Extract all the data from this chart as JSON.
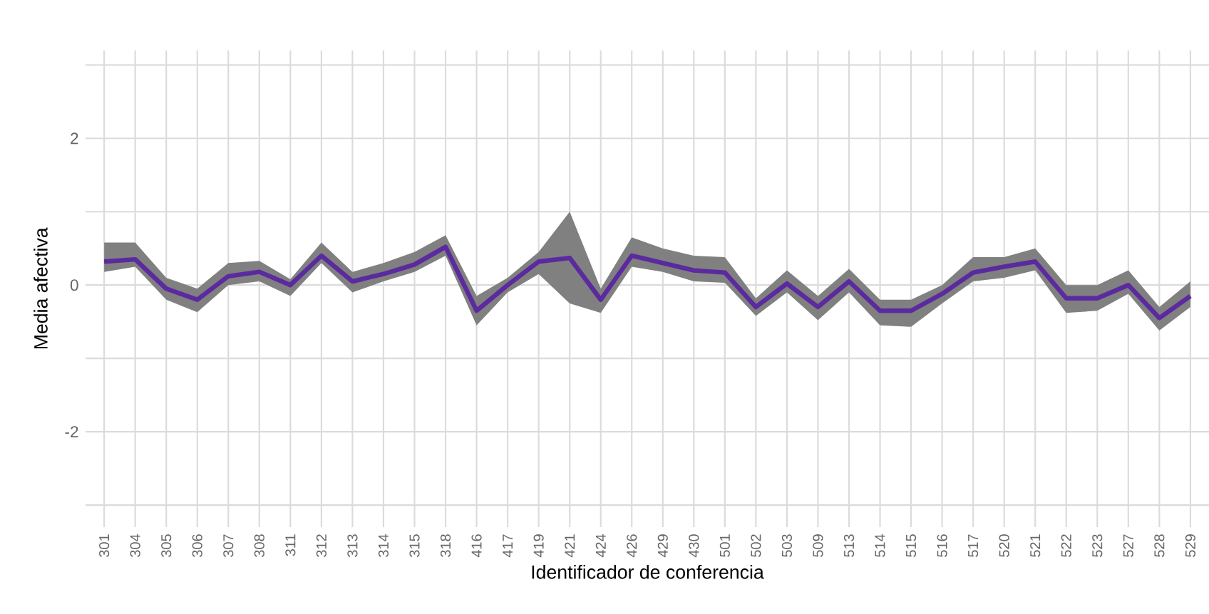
{
  "chart_data": {
    "type": "line",
    "xlabel": "Identificador de conferencia",
    "ylabel": "Media afectiva",
    "categories": [
      "301",
      "304",
      "305",
      "306",
      "307",
      "308",
      "311",
      "312",
      "313",
      "314",
      "315",
      "318",
      "416",
      "417",
      "419",
      "421",
      "424",
      "426",
      "429",
      "430",
      "501",
      "502",
      "503",
      "509",
      "513",
      "514",
      "515",
      "516",
      "517",
      "520",
      "521",
      "522",
      "523",
      "527",
      "528",
      "529"
    ],
    "series": [
      {
        "color": "#5b2a9e",
        "values": [
          0.32,
          0.35,
          -0.05,
          -0.2,
          0.12,
          0.18,
          0.0,
          0.4,
          0.05,
          0.15,
          0.28,
          0.52,
          -0.35,
          0.0,
          0.32,
          0.37,
          -0.2,
          0.4,
          0.3,
          0.2,
          0.17,
          -0.3,
          0.02,
          -0.3,
          0.05,
          -0.35,
          -0.35,
          -0.12,
          0.17,
          0.25,
          0.32,
          -0.18,
          -0.18,
          0.0,
          -0.45,
          -0.15
        ],
        "lower": [
          0.18,
          0.25,
          -0.2,
          -0.37,
          0.0,
          0.05,
          -0.15,
          0.3,
          -0.1,
          0.05,
          0.18,
          0.4,
          -0.55,
          -0.1,
          0.15,
          -0.25,
          -0.38,
          0.25,
          0.18,
          0.05,
          0.03,
          -0.42,
          -0.1,
          -0.48,
          -0.1,
          -0.55,
          -0.57,
          -0.25,
          0.05,
          0.1,
          0.2,
          -0.38,
          -0.35,
          -0.12,
          -0.62,
          -0.3
        ],
        "upper": [
          0.58,
          0.58,
          0.1,
          -0.05,
          0.3,
          0.33,
          0.08,
          0.58,
          0.18,
          0.3,
          0.45,
          0.68,
          -0.15,
          0.1,
          0.45,
          1.0,
          -0.05,
          0.65,
          0.5,
          0.4,
          0.38,
          -0.18,
          0.2,
          -0.15,
          0.22,
          -0.2,
          -0.2,
          0.0,
          0.38,
          0.38,
          0.5,
          0.0,
          0.0,
          0.2,
          -0.3,
          0.05
        ]
      }
    ],
    "ylim": [
      -3.3,
      3.2
    ],
    "yticks": [
      {
        "value": -3,
        "label": null
      },
      -2,
      {
        "value": -1,
        "label": null
      },
      0,
      {
        "value": 1,
        "label": null
      },
      2,
      {
        "value": 3,
        "label": null
      }
    ],
    "grid": true,
    "marker": "none",
    "line_style": "solid"
  }
}
